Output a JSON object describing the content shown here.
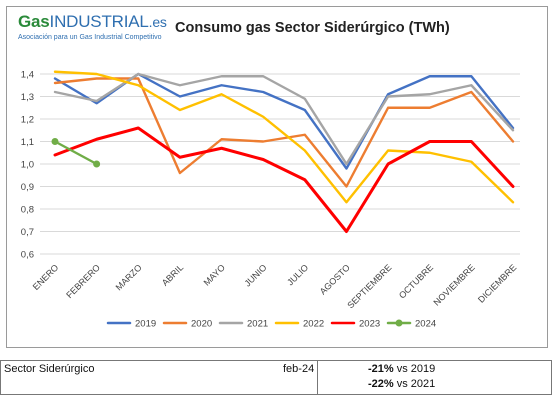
{
  "header": {
    "logo_gas": "Gas",
    "logo_industrial": "INDUSTRIAL",
    "logo_es": ".es",
    "logo_subtitle": "Asociación para un Gas Industrial Competitivo",
    "title": "Consumo gas Sector Siderúrgico (TWh)"
  },
  "chart_data": {
    "type": "line",
    "title": "Consumo gas Sector Siderúrgico (TWh)",
    "categories": [
      "ENERO",
      "FEBRERO",
      "MARZO",
      "ABRIL",
      "MAYO",
      "JUNIO",
      "JULIO",
      "AGOSTO",
      "SEPTIEMBRE",
      "OCTUBRE",
      "NOVIEMBRE",
      "DICIEMBRE"
    ],
    "ylim": [
      0.6,
      1.4
    ],
    "yticks": [
      "0,6",
      "0,7",
      "0,8",
      "0,9",
      "1,0",
      "1,1",
      "1,2",
      "1,3",
      "1,4"
    ],
    "ytick_values": [
      0.6,
      0.7,
      0.8,
      0.9,
      1.0,
      1.1,
      1.2,
      1.3,
      1.4
    ],
    "grid": true,
    "legend_position": "bottom",
    "series": [
      {
        "name": "2019",
        "color": "#4472c4",
        "values": [
          1.38,
          1.27,
          1.4,
          1.3,
          1.35,
          1.32,
          1.24,
          0.98,
          1.31,
          1.39,
          1.39,
          1.16
        ]
      },
      {
        "name": "2020",
        "color": "#ed7d31",
        "values": [
          1.36,
          1.38,
          1.38,
          0.96,
          1.11,
          1.1,
          1.13,
          0.9,
          1.25,
          1.25,
          1.32,
          1.1
        ]
      },
      {
        "name": "2021",
        "color": "#a5a5a5",
        "values": [
          1.32,
          1.28,
          1.4,
          1.35,
          1.39,
          1.39,
          1.29,
          1.0,
          1.3,
          1.31,
          1.35,
          1.15
        ]
      },
      {
        "name": "2022",
        "color": "#ffc000",
        "values": [
          1.41,
          1.4,
          1.35,
          1.24,
          1.31,
          1.21,
          1.06,
          0.83,
          1.06,
          1.05,
          1.01,
          0.83
        ]
      },
      {
        "name": "2023",
        "color": "#ff0000",
        "values": [
          1.04,
          1.11,
          1.16,
          1.03,
          1.07,
          1.02,
          0.93,
          0.7,
          1.0,
          1.1,
          1.1,
          0.9
        ]
      },
      {
        "name": "2024",
        "color": "#70ad47",
        "values": [
          1.1,
          1.0,
          null,
          null,
          null,
          null,
          null,
          null,
          null,
          null,
          null,
          null
        ]
      }
    ]
  },
  "summary": {
    "label": "Sector Siderúrgico",
    "period": "feb-24",
    "row1_pct": "-21%",
    "row1_text": " vs 2019",
    "row2_pct": "-22%",
    "row2_text": " vs 2021"
  }
}
